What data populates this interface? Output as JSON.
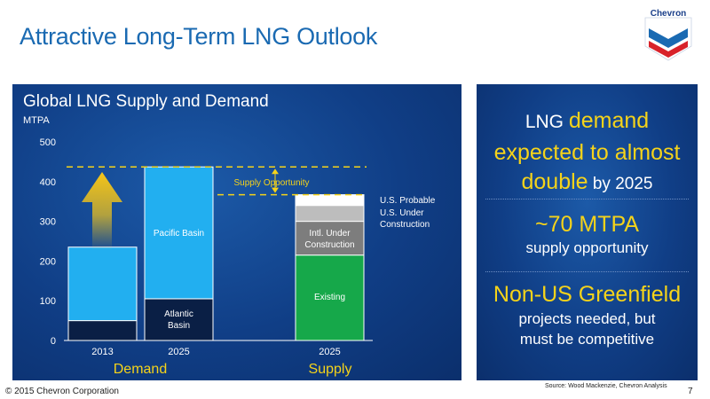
{
  "slide": {
    "title": "Attractive Long-Term LNG Outlook",
    "logo_text": "Chevron",
    "footer": "© 2015 Chevron Corporation",
    "source": "Source: Wood Mackenzie, Chevron Analysis",
    "page_number": "7"
  },
  "chart_data": {
    "type": "bar",
    "title": "Global LNG Supply and Demand",
    "unit": "MTPA",
    "ylim": [
      0,
      500
    ],
    "yticks": [
      "0",
      "100",
      "200",
      "300",
      "400",
      "500"
    ],
    "categories": [
      "2013",
      "2025",
      "2025"
    ],
    "group_labels": [
      "Demand",
      "Supply"
    ],
    "stacks": [
      {
        "category": "2013",
        "segments": [
          {
            "name": "Atlantic Basin",
            "value": 50
          },
          {
            "name": "Pacific Basin",
            "value": 185
          }
        ]
      },
      {
        "category": "2025",
        "segments": [
          {
            "name": "Atlantic Basin",
            "value": 105
          },
          {
            "name": "Pacific Basin",
            "value": 332
          }
        ]
      },
      {
        "category": "2025",
        "segments": [
          {
            "name": "Existing",
            "value": 215
          },
          {
            "name": "Intl. Under Construction",
            "value": 85
          },
          {
            "name": "U.S. Under Construction",
            "value": 40
          },
          {
            "name": "U.S. Probable",
            "value": 27
          }
        ]
      }
    ],
    "segment_labels": {
      "pacific": "Pacific Basin",
      "atlantic": "Atlantic Basin",
      "existing": "Existing",
      "intl": "Intl. Under Construction",
      "us_uc": "U.S. Under Construction",
      "us_prob": "U.S. Probable"
    },
    "annotation": {
      "label": "Supply Opportunity",
      "demand_level": 437,
      "supply_level": 367
    },
    "grid": false,
    "colors": {
      "pacific": "#22aff0",
      "atlantic": "#0a1f45",
      "existing": "#16a84a",
      "intl": "#7d7d7d",
      "us_uc": "#bdbdbd",
      "us_prob": "#ffffff",
      "accent": "#f5d31a",
      "arrow": "#f5c518"
    }
  },
  "right_panel": {
    "block1_a": "LNG ",
    "block1_b": "demand",
    "block1_c": "expected to almost",
    "block1_d": "double",
    "block1_e": " by 2025",
    "block2_a": "~70 MTPA",
    "block2_b": "supply opportunity",
    "block3_a": "Non-US Greenfield",
    "block3_b": "projects needed, but",
    "block3_c": "must be competitive"
  }
}
